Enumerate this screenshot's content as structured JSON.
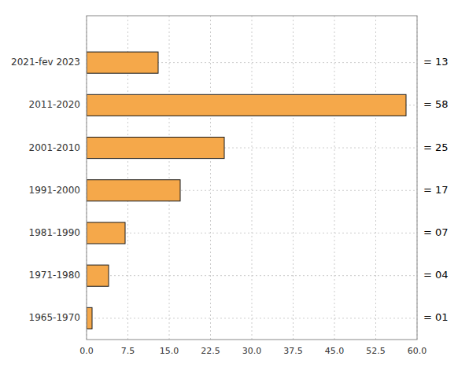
{
  "chart_data": {
    "type": "bar",
    "orientation": "horizontal",
    "categories": [
      "1965-1970",
      "1971-1980",
      "1981-1990",
      "1991-2000",
      "2001-2010",
      "2011-2020",
      "2021-fev 2023"
    ],
    "values": [
      1,
      4,
      7,
      17,
      25,
      58,
      13
    ],
    "value_labels": [
      "= 01",
      "= 04",
      "= 07",
      "= 17",
      "= 25",
      "= 58",
      "= 13"
    ],
    "data_labels": true,
    "color": "#F5A84A",
    "xlim": [
      0,
      60.0
    ],
    "xticks": [
      {
        "value": 0.0,
        "label": "0.0"
      },
      7.5,
      {
        "value": 15.0,
        "label": "15.0"
      },
      22.5,
      {
        "value": 30.0,
        "label": "30.0"
      },
      37.5,
      {
        "value": 45.0,
        "label": "45.0"
      },
      52.5,
      {
        "value": 60.0,
        "label": "60.0"
      }
    ],
    "grid": true
  }
}
